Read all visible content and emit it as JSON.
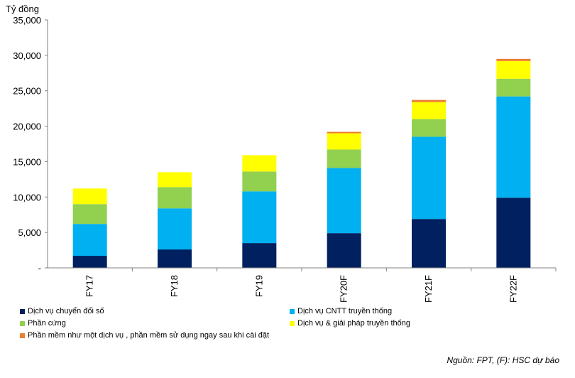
{
  "chart_data": {
    "type": "bar",
    "stacked": true,
    "unit_label": "Tỷ đồng",
    "categories": [
      "FY17",
      "FY18",
      "FY19",
      "FY20F",
      "FY21F",
      "FY22F"
    ],
    "ylim": [
      0,
      35000
    ],
    "yticks": [
      "-",
      "5,000",
      "10,000",
      "15,000",
      "20,000",
      "25,000",
      "30,000",
      "35,000"
    ],
    "ytick_values": [
      0,
      5000,
      10000,
      15000,
      20000,
      25000,
      30000,
      35000
    ],
    "grid": false,
    "legend_position": "bottom",
    "series": [
      {
        "name": "Dịch vụ chuyển đổi số",
        "color": "#002060",
        "values": [
          1700,
          2600,
          3500,
          4900,
          6900,
          9900
        ]
      },
      {
        "name": "Dịch vụ CNTT truyền thống",
        "color": "#00B0F0",
        "values": [
          4500,
          5800,
          7300,
          9200,
          11600,
          14300
        ]
      },
      {
        "name": "Phần cứng",
        "color": "#92D050",
        "values": [
          2800,
          3000,
          2800,
          2600,
          2500,
          2500
        ]
      },
      {
        "name": "Dịch vụ & giải pháp truyền thống",
        "color": "#FFFF00",
        "values": [
          2200,
          2100,
          2300,
          2300,
          2400,
          2500
        ]
      },
      {
        "name": "Phần mềm như một dịch vụ , phần mềm sử dụng ngay sau khi cài đặt",
        "color": "#ED7D31",
        "values": [
          0,
          0,
          0,
          200,
          300,
          300
        ]
      }
    ]
  },
  "source": "Nguồn: FPT, (F): HSC dự báo"
}
